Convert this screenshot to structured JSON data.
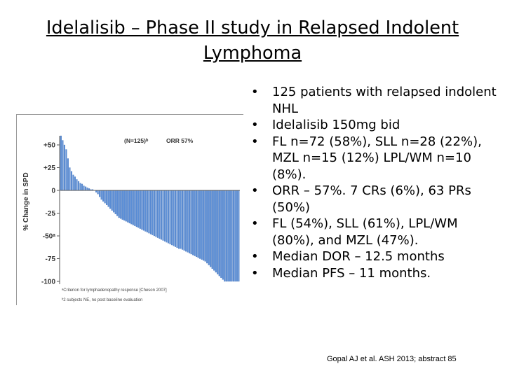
{
  "slide": {
    "title_line1": "Idelalisib – Phase II study in Relapsed Indolent",
    "title_line2": "Lymphoma",
    "bullets": [
      "125 patients with relapsed indolent NHL",
      "Idelalisib 150mg bid",
      "FL  n=72 (58%), SLL n=28 (22%), MZL n=15 (12%) LPL/WM n=10 (8%).",
      "ORR – 57%. 7 CRs (6%), 63 PRs (50%)",
      "FL (54%), SLL (61%), LPL/WM (80%), and MZL (47%).",
      "Median DOR – 12.5 months",
      "Median PFS – 11 months."
    ],
    "bullet_symbol": "•",
    "citation": "Gopal AJ et al. ASH 2013; abstract 85"
  },
  "chart_data": {
    "type": "bar",
    "subtype": "waterfall",
    "title": "",
    "ylabel": "% Change in SPD",
    "ylim": [
      -100,
      60
    ],
    "yticks": [
      {
        "v": 50,
        "label": "+50"
      },
      {
        "v": 25,
        "label": "+25"
      },
      {
        "v": 0,
        "label": "0"
      },
      {
        "v": -25,
        "label": "-25"
      },
      {
        "v": -50,
        "label": "-50ᵃ"
      },
      {
        "v": -75,
        "label": "-75"
      },
      {
        "v": -100,
        "label": "-100"
      }
    ],
    "annotations": {
      "n_label": "(N=125)ᵇ",
      "orr_label": "ORR 57%"
    },
    "footnotes": [
      "ᵃCriterion for lymphadenopathy response [Cheson 2007]",
      "ᵇ2 subjects NE, no post baseline evaluation"
    ],
    "colors": {
      "bar": "#5b8ed6",
      "axis": "#555555",
      "text": "#333333"
    },
    "values": [
      62,
      55,
      50,
      45,
      35,
      25,
      21,
      17,
      15,
      12,
      10,
      8,
      7,
      5,
      4,
      3,
      2,
      1,
      1,
      0,
      -2,
      -4,
      -7,
      -10,
      -12,
      -14,
      -16,
      -18,
      -20,
      -22,
      -24,
      -26,
      -28,
      -30,
      -31,
      -32,
      -33,
      -34,
      -35,
      -36,
      -37,
      -38,
      -39,
      -40,
      -41,
      -42,
      -43,
      -44,
      -45,
      -46,
      -47,
      -48,
      -49,
      -50,
      -51,
      -52,
      -53,
      -54,
      -55,
      -56,
      -57,
      -58,
      -59,
      -60,
      -61,
      -62,
      -63,
      -64,
      -64,
      -65,
      -66,
      -67,
      -68,
      -69,
      -70,
      -71,
      -72,
      -73,
      -74,
      -75,
      -76,
      -77,
      -78,
      -80,
      -82,
      -84,
      -86,
      -88,
      -90,
      -92,
      -94,
      -96,
      -98,
      -100,
      -100,
      -100,
      -100,
      -100,
      -100,
      -100,
      -100,
      -100
    ]
  }
}
